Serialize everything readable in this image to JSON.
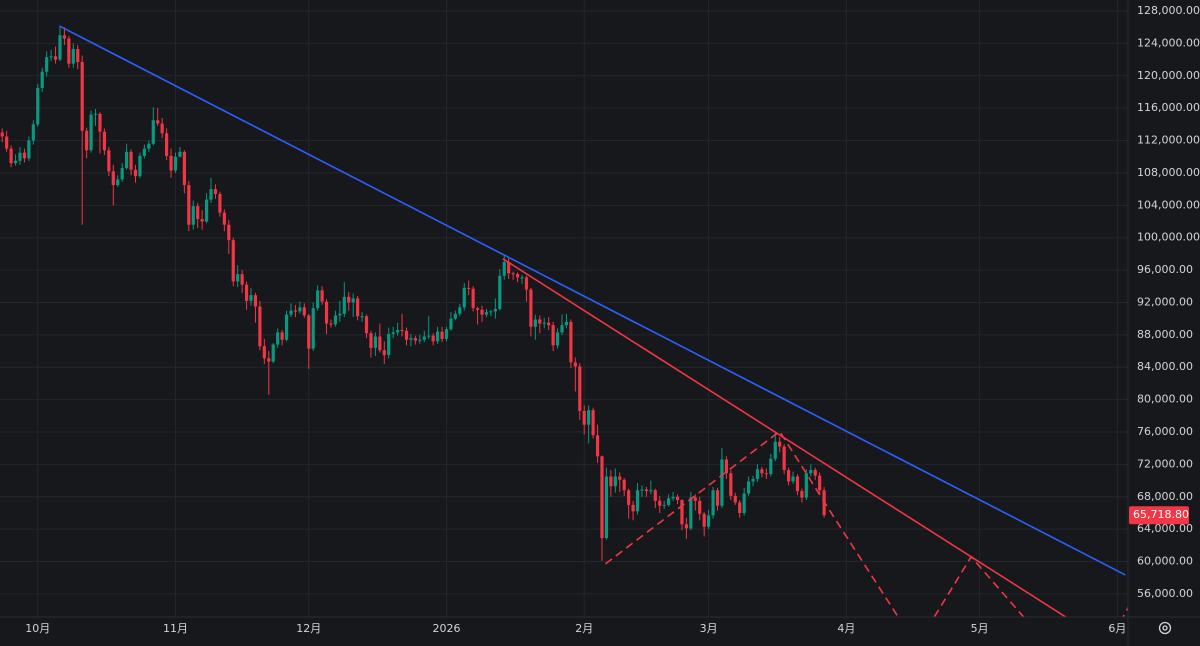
{
  "chart_data": {
    "type": "candlestick",
    "up_color": "#089981",
    "down_color": "#f23645",
    "grid": true,
    "xlim": [
      -8.5,
      245.4
    ],
    "ylim": [
      53150,
      129360
    ],
    "xticks": [
      {
        "value": 0,
        "label": "10月"
      },
      {
        "value": 31,
        "label": "11月"
      },
      {
        "value": 61,
        "label": "12月"
      },
      {
        "value": 92,
        "label": "2026"
      },
      {
        "value": 123,
        "label": "2月"
      },
      {
        "value": 151,
        "label": "3月"
      },
      {
        "value": 182,
        "label": "4月"
      },
      {
        "value": 212,
        "label": "5月"
      },
      {
        "value": 243,
        "label": "6月"
      }
    ],
    "yticks": [
      {
        "value": 56000,
        "label": "56,000.00"
      },
      {
        "value": 60000,
        "label": "60,000.00"
      },
      {
        "value": 64000,
        "label": "64,000.00"
      },
      {
        "value": 68000,
        "label": "68,000.00"
      },
      {
        "value": 72000,
        "label": "72,000.00"
      },
      {
        "value": 76000,
        "label": "76,000.00"
      },
      {
        "value": 80000,
        "label": "80,000.00"
      },
      {
        "value": 84000,
        "label": "84,000.00"
      },
      {
        "value": 88000,
        "label": "88,000.00"
      },
      {
        "value": 92000,
        "label": "92,000.00"
      },
      {
        "value": 96000,
        "label": "96,000.00"
      },
      {
        "value": 100000,
        "label": "100,000.00"
      },
      {
        "value": 104000,
        "label": "104,000.00"
      },
      {
        "value": 108000,
        "label": "108,000.00"
      },
      {
        "value": 112000,
        "label": "112,000.00"
      },
      {
        "value": 116000,
        "label": "116,000.00"
      },
      {
        "value": 120000,
        "label": "120,000.00"
      },
      {
        "value": 124000,
        "label": "124,000.00"
      },
      {
        "value": 128000,
        "label": "128,000.00"
      }
    ],
    "last_price": {
      "value": 65718.8,
      "label": "65,718.80"
    },
    "x": [
      -8,
      -7,
      -6,
      -5,
      -4,
      -3,
      -2,
      -1,
      0,
      1,
      2,
      3,
      4,
      5,
      6,
      7,
      8,
      9,
      10,
      11,
      12,
      13,
      14,
      15,
      16,
      17,
      18,
      19,
      20,
      21,
      22,
      23,
      24,
      25,
      26,
      27,
      28,
      29,
      30,
      31,
      32,
      33,
      34,
      35,
      36,
      37,
      38,
      39,
      40,
      41,
      42,
      43,
      44,
      45,
      46,
      47,
      48,
      49,
      50,
      51,
      52,
      53,
      54,
      55,
      56,
      57,
      58,
      59,
      60,
      61,
      62,
      63,
      64,
      65,
      66,
      67,
      68,
      69,
      70,
      71,
      72,
      73,
      74,
      75,
      76,
      77,
      78,
      79,
      80,
      81,
      82,
      83,
      84,
      85,
      86,
      87,
      88,
      89,
      90,
      91,
      92,
      93,
      94,
      95,
      96,
      97,
      98,
      99,
      100,
      101,
      102,
      103,
      104,
      105,
      106,
      107,
      108,
      109,
      110,
      111,
      112,
      113,
      114,
      115,
      116,
      117,
      118,
      119,
      120,
      121,
      122,
      123,
      124,
      125,
      126,
      127,
      128,
      129,
      130,
      131,
      132,
      133,
      134,
      135,
      136,
      137,
      138,
      139,
      140,
      141,
      142,
      143,
      144,
      145,
      146,
      147,
      148,
      149,
      150,
      151,
      152,
      153,
      154,
      155,
      156,
      157,
      158,
      159,
      160,
      161,
      162,
      163,
      164,
      165,
      166,
      167,
      168,
      169,
      170,
      171,
      172,
      173,
      174,
      175,
      176,
      177
    ],
    "ohlc": [
      [
        113000,
        113500,
        111800,
        112500
      ],
      [
        112500,
        113200,
        110600,
        111000
      ],
      [
        111000,
        111400,
        108700,
        109200
      ],
      [
        109200,
        110300,
        108900,
        109500
      ],
      [
        109500,
        111200,
        109000,
        110500
      ],
      [
        110500,
        111000,
        109300,
        109800
      ],
      [
        109800,
        112500,
        109500,
        112000
      ],
      [
        112000,
        114500,
        111500,
        114000
      ],
      [
        114000,
        119000,
        113700,
        118500
      ],
      [
        118500,
        121000,
        118000,
        120500
      ],
      [
        120500,
        123000,
        119900,
        122300
      ],
      [
        122300,
        123200,
        121800,
        122400
      ],
      [
        122400,
        123600,
        121500,
        122000
      ],
      [
        122000,
        126200,
        121800,
        125000
      ],
      [
        125000,
        126000,
        123800,
        124600
      ],
      [
        124600,
        124900,
        121000,
        121500
      ],
      [
        121500,
        124000,
        121000,
        123300
      ],
      [
        123300,
        123800,
        120800,
        121700
      ],
      [
        121700,
        122500,
        101600,
        113200
      ],
      [
        113200,
        113600,
        109800,
        110800
      ],
      [
        110800,
        115700,
        110500,
        115200
      ],
      [
        115200,
        115900,
        113800,
        115300
      ],
      [
        115300,
        115500,
        110400,
        113100
      ],
      [
        113100,
        113500,
        110200,
        110800
      ],
      [
        110800,
        111200,
        107600,
        108200
      ],
      [
        108200,
        109000,
        104000,
        106500
      ],
      [
        106500,
        107700,
        106300,
        107200
      ],
      [
        107200,
        109200,
        106900,
        108600
      ],
      [
        108600,
        111600,
        108400,
        110600
      ],
      [
        110600,
        110900,
        107700,
        108400
      ],
      [
        108400,
        109000,
        106800,
        107600
      ],
      [
        107600,
        110500,
        107400,
        110100
      ],
      [
        110100,
        111500,
        109800,
        111000
      ],
      [
        111000,
        112000,
        110600,
        111600
      ],
      [
        111600,
        116100,
        111400,
        114500
      ],
      [
        114500,
        116000,
        113800,
        114100
      ],
      [
        114100,
        114800,
        112300,
        112900
      ],
      [
        112900,
        113500,
        109600,
        110100
      ],
      [
        110100,
        111000,
        107400,
        108300
      ],
      [
        108300,
        110500,
        108000,
        110000
      ],
      [
        110000,
        111200,
        109900,
        110600
      ],
      [
        110600,
        110800,
        105500,
        106500
      ],
      [
        106500,
        107000,
        100800,
        101600
      ],
      [
        101600,
        104600,
        101000,
        103900
      ],
      [
        103900,
        104300,
        101200,
        102300
      ],
      [
        102300,
        103400,
        101000,
        102000
      ],
      [
        102000,
        105500,
        101800,
        104700
      ],
      [
        104700,
        107400,
        104300,
        106000
      ],
      [
        106000,
        106600,
        104800,
        105400
      ],
      [
        105400,
        105700,
        102600,
        103100
      ],
      [
        103100,
        103500,
        100800,
        101600
      ],
      [
        101600,
        102200,
        98000,
        99700
      ],
      [
        99700,
        100000,
        94000,
        94600
      ],
      [
        94600,
        96600,
        93900,
        95500
      ],
      [
        95500,
        96000,
        93200,
        94200
      ],
      [
        94200,
        94600,
        91100,
        92200
      ],
      [
        92200,
        93800,
        91600,
        92900
      ],
      [
        92900,
        93200,
        89500,
        91500
      ],
      [
        91500,
        92200,
        86100,
        86600
      ],
      [
        86600,
        87500,
        84400,
        85100
      ],
      [
        85100,
        86000,
        80600,
        84700
      ],
      [
        84700,
        87000,
        84500,
        86800
      ],
      [
        86800,
        88800,
        86400,
        88300
      ],
      [
        88300,
        88600,
        86700,
        87400
      ],
      [
        87400,
        91000,
        87200,
        90500
      ],
      [
        90500,
        91900,
        90200,
        91000
      ],
      [
        91000,
        91700,
        90200,
        90900
      ],
      [
        90900,
        92100,
        90600,
        91400
      ],
      [
        91400,
        91900,
        90100,
        90400
      ],
      [
        90400,
        90600,
        83800,
        86300
      ],
      [
        86300,
        92000,
        86000,
        91300
      ],
      [
        91300,
        94100,
        91000,
        93500
      ],
      [
        93500,
        94000,
        91700,
        92100
      ],
      [
        92100,
        92400,
        88100,
        89400
      ],
      [
        89400,
        89900,
        88900,
        89300
      ],
      [
        89300,
        91000,
        89000,
        90400
      ],
      [
        90400,
        92200,
        89600,
        90600
      ],
      [
        90600,
        94500,
        90200,
        92700
      ],
      [
        92700,
        93300,
        91000,
        92000
      ],
      [
        92000,
        93100,
        90200,
        92500
      ],
      [
        92500,
        92800,
        89800,
        90300
      ],
      [
        90300,
        90800,
        89600,
        90300
      ],
      [
        90300,
        90500,
        87600,
        88200
      ],
      [
        88200,
        88500,
        85200,
        86400
      ],
      [
        86400,
        88300,
        85400,
        87800
      ],
      [
        87800,
        89400,
        85800,
        86100
      ],
      [
        86100,
        87200,
        84400,
        85500
      ],
      [
        85500,
        88900,
        85100,
        88100
      ],
      [
        88100,
        89000,
        87600,
        88300
      ],
      [
        88300,
        89500,
        87900,
        88600
      ],
      [
        88600,
        90600,
        87800,
        88500
      ],
      [
        88500,
        88900,
        86700,
        87400
      ],
      [
        87400,
        88100,
        86600,
        87600
      ],
      [
        87600,
        87900,
        86800,
        87300
      ],
      [
        87300,
        88000,
        86900,
        87400
      ],
      [
        87400,
        88500,
        87100,
        87800
      ],
      [
        87800,
        90300,
        87500,
        87900
      ],
      [
        87900,
        88200,
        86700,
        87200
      ],
      [
        87200,
        89000,
        86900,
        88400
      ],
      [
        88400,
        89000,
        87100,
        87500
      ],
      [
        87500,
        89000,
        87200,
        88700
      ],
      [
        88700,
        90800,
        88500,
        90000
      ],
      [
        90000,
        91000,
        89800,
        90600
      ],
      [
        90600,
        91800,
        90300,
        91400
      ],
      [
        91400,
        94400,
        91000,
        93800
      ],
      [
        93800,
        94700,
        92900,
        93700
      ],
      [
        93700,
        94000,
        90900,
        91300
      ],
      [
        91300,
        91500,
        89300,
        91100
      ],
      [
        91100,
        91600,
        89600,
        90500
      ],
      [
        90500,
        91200,
        90200,
        90800
      ],
      [
        90800,
        91100,
        90300,
        90900
      ],
      [
        90900,
        92500,
        90000,
        91200
      ],
      [
        91200,
        96100,
        91000,
        95300
      ],
      [
        95300,
        97900,
        94800,
        97000
      ],
      [
        97000,
        97500,
        94900,
        95600
      ],
      [
        95600,
        95800,
        94800,
        95500
      ],
      [
        95500,
        95700,
        94500,
        95100
      ],
      [
        95100,
        95400,
        94300,
        95100
      ],
      [
        95100,
        95300,
        92100,
        93600
      ],
      [
        93600,
        93800,
        87800,
        89000
      ],
      [
        89000,
        90500,
        87400,
        89900
      ],
      [
        89900,
        90400,
        88200,
        89400
      ],
      [
        89400,
        90100,
        88800,
        89500
      ],
      [
        89500,
        90200,
        88600,
        89200
      ],
      [
        89200,
        89600,
        86000,
        86700
      ],
      [
        86700,
        88800,
        86300,
        88300
      ],
      [
        88300,
        90500,
        88000,
        89200
      ],
      [
        89200,
        90600,
        88800,
        89600
      ],
      [
        89600,
        89900,
        83900,
        84600
      ],
      [
        84600,
        85200,
        81000,
        84100
      ],
      [
        84100,
        84500,
        77500,
        78600
      ],
      [
        78600,
        79300,
        75700,
        76900
      ],
      [
        76900,
        79300,
        74600,
        78700
      ],
      [
        78700,
        79000,
        75200,
        75600
      ],
      [
        75600,
        76900,
        72200,
        73000
      ],
      [
        73000,
        73100,
        60100,
        62900
      ],
      [
        62900,
        71600,
        62700,
        70500
      ],
      [
        70500,
        71300,
        68000,
        69300
      ],
      [
        69300,
        71500,
        68500,
        70500
      ],
      [
        70500,
        71000,
        68600,
        70100
      ],
      [
        70100,
        70300,
        68100,
        68800
      ],
      [
        68800,
        69000,
        65300,
        67000
      ],
      [
        67000,
        67500,
        65100,
        66200
      ],
      [
        66200,
        69700,
        65800,
        68800
      ],
      [
        68800,
        69400,
        68000,
        68900
      ],
      [
        68900,
        69200,
        68000,
        68700
      ],
      [
        68700,
        70000,
        68300,
        68800
      ],
      [
        68800,
        69000,
        66600,
        67500
      ],
      [
        67500,
        68100,
        66000,
        66900
      ],
      [
        66900,
        67500,
        66500,
        67000
      ],
      [
        67000,
        68300,
        66800,
        67800
      ],
      [
        67800,
        68600,
        67500,
        68000
      ],
      [
        68000,
        68300,
        67100,
        67600
      ],
      [
        67600,
        67700,
        63900,
        64600
      ],
      [
        64600,
        65400,
        62800,
        64100
      ],
      [
        64100,
        68600,
        63900,
        67900
      ],
      [
        67900,
        68300,
        66300,
        67500
      ],
      [
        67500,
        68000,
        65100,
        65900
      ],
      [
        65900,
        66100,
        63100,
        64300
      ],
      [
        64300,
        66400,
        64000,
        65700
      ],
      [
        65700,
        69200,
        65300,
        68800
      ],
      [
        68800,
        69100,
        66300,
        66900
      ],
      [
        66900,
        74000,
        66600,
        72600
      ],
      [
        72600,
        73000,
        70200,
        70900
      ],
      [
        70900,
        71300,
        67600,
        68100
      ],
      [
        68100,
        68500,
        67000,
        67300
      ],
      [
        67300,
        67600,
        65400,
        66000
      ],
      [
        66000,
        69100,
        65700,
        68400
      ],
      [
        68400,
        70500,
        68100,
        69900
      ],
      [
        69900,
        70600,
        69300,
        70200
      ],
      [
        70200,
        72000,
        69800,
        71400
      ],
      [
        71400,
        71700,
        70400,
        70900
      ],
      [
        70900,
        71500,
        70200,
        70800
      ],
      [
        70800,
        73300,
        70500,
        72700
      ],
      [
        72700,
        76000,
        72400,
        74800
      ],
      [
        74800,
        75400,
        73500,
        74200
      ],
      [
        74200,
        74500,
        70800,
        71300
      ],
      [
        71300,
        71600,
        69400,
        69900
      ],
      [
        69900,
        71100,
        69600,
        70500
      ],
      [
        70500,
        70800,
        68200,
        68700
      ],
      [
        68700,
        69000,
        67300,
        67900
      ],
      [
        67900,
        71400,
        67600,
        70900
      ],
      [
        70900,
        72000,
        70500,
        71300
      ],
      [
        71300,
        71600,
        70100,
        70600
      ],
      [
        70600,
        71000,
        68300,
        68800
      ],
      [
        68800,
        69200,
        65400,
        65718.8
      ]
    ],
    "trendlines": [
      {
        "color": "#2962ff",
        "dashed": false,
        "points": [
          [
            4.9,
            126140
          ],
          [
            244.8,
            58350
          ]
        ]
      },
      {
        "color": "#f23645",
        "dashed": false,
        "points": [
          [
            104.7,
            97390
          ],
          [
            231.4,
            53150
          ]
        ]
      },
      {
        "color": "#f23645",
        "dashed": true,
        "points": [
          [
            127.8,
            59720
          ],
          [
            167,
            76080
          ],
          [
            178.7,
            65920
          ],
          [
            194.4,
            52530
          ],
          [
            201.1,
            52530
          ],
          [
            210.1,
            60590
          ],
          [
            222.9,
            52530
          ]
        ]
      },
      {
        "color": "#f23645",
        "dashed": true,
        "points": [
          [
            243.7,
            52530
          ],
          [
            245.5,
            54400
          ]
        ]
      }
    ]
  }
}
